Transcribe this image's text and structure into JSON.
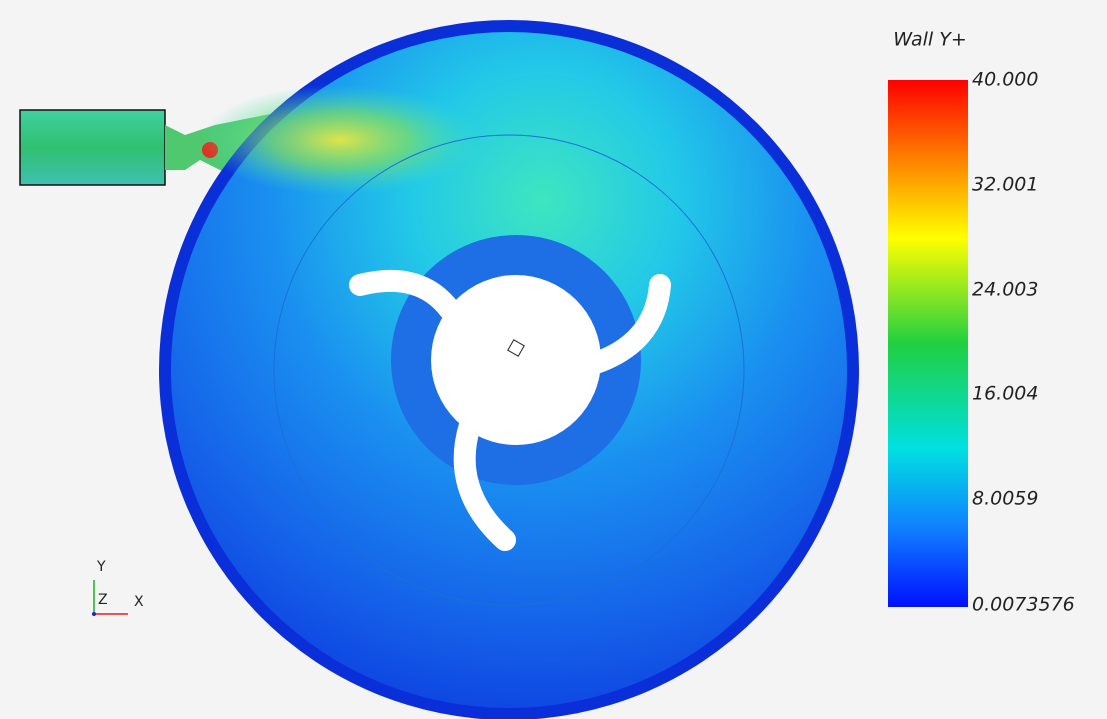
{
  "colorbar": {
    "title": "Wall Y+",
    "labels": [
      "40.000",
      "32.001",
      "24.003",
      "16.004",
      "8.0059",
      "0.0073576"
    ]
  },
  "triad": {
    "y": "Y",
    "z": "Z",
    "x": "X"
  }
}
